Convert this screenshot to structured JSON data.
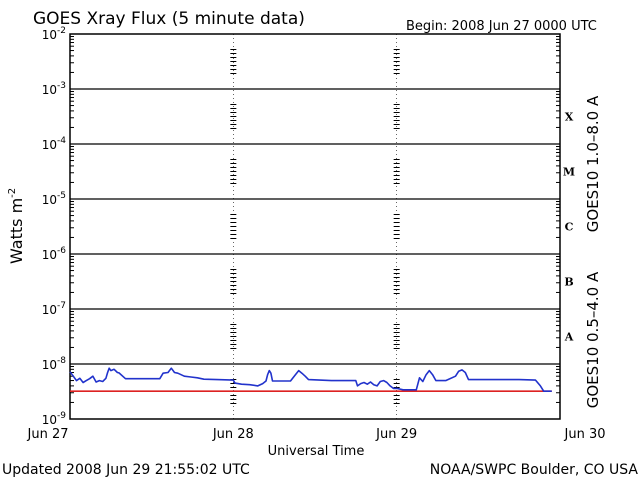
{
  "chart_data": {
    "type": "line",
    "title": "GOES Xray Flux (5 minute data)",
    "begin_label": "Begin:  2008 Jun 27 0000 UTC",
    "xlabel": "Universal Time",
    "ylabel": "Watts m",
    "ylabel_exponent": "-2",
    "y_scale": "log",
    "ylim": [
      1e-09,
      0.01
    ],
    "xlim": [
      0,
      3
    ],
    "x_unit": "days from Jun 27 0000 UTC",
    "x_ticks": [
      {
        "value": 0,
        "label": "Jun 27"
      },
      {
        "value": 1,
        "label": "Jun 28"
      },
      {
        "value": 2,
        "label": "Jun 29"
      },
      {
        "value": 3,
        "label": "Jun 30"
      }
    ],
    "y_ticks": [
      {
        "exp": -9,
        "label_base": "10",
        "label_exp": "-9"
      },
      {
        "exp": -8,
        "label_base": "10",
        "label_exp": "-8"
      },
      {
        "exp": -7,
        "label_base": "10",
        "label_exp": "-7"
      },
      {
        "exp": -6,
        "label_base": "10",
        "label_exp": "-6"
      },
      {
        "exp": -5,
        "label_base": "10",
        "label_exp": "-5"
      },
      {
        "exp": -4,
        "label_base": "10",
        "label_exp": "-4"
      },
      {
        "exp": -3,
        "label_base": "10",
        "label_exp": "-3"
      },
      {
        "exp": -2,
        "label_base": "10",
        "label_exp": "-2"
      }
    ],
    "flare_classes": [
      {
        "label": "A",
        "exp_center": -7.5
      },
      {
        "label": "B",
        "exp_center": -6.5
      },
      {
        "label": "C",
        "exp_center": -5.5
      },
      {
        "label": "M",
        "exp_center": -4.5
      },
      {
        "label": "X",
        "exp_center": -3.5
      }
    ],
    "grid": "horizontal lines at each decade from 1e-8 to 1e-3; dotted verticals at day boundaries",
    "series": [
      {
        "name": "GOES10 1.0–8.0 A",
        "color": "#dd2222",
        "points": [
          [
            0.0,
            3.2e-09
          ],
          [
            2.06,
            3.2e-09
          ],
          [
            2.07,
            3.2e-09
          ],
          [
            2.85,
            3.2e-09
          ],
          [
            2.95,
            3.2e-09
          ]
        ]
      },
      {
        "name": "GOES10 0.5–4.0 A",
        "color": "#2233cc",
        "points": [
          [
            0.0,
            7.2e-09
          ],
          [
            0.02,
            6e-09
          ],
          [
            0.04,
            5e-09
          ],
          [
            0.06,
            5.5e-09
          ],
          [
            0.08,
            4.6e-09
          ],
          [
            0.1,
            5e-09
          ],
          [
            0.12,
            5.4e-09
          ],
          [
            0.14,
            6e-09
          ],
          [
            0.16,
            4.7e-09
          ],
          [
            0.18,
            5e-09
          ],
          [
            0.2,
            4.8e-09
          ],
          [
            0.22,
            5.5e-09
          ],
          [
            0.23,
            7e-09
          ],
          [
            0.24,
            8.4e-09
          ],
          [
            0.25,
            7.6e-09
          ],
          [
            0.27,
            8e-09
          ],
          [
            0.29,
            7e-09
          ],
          [
            0.3,
            6.9e-09
          ],
          [
            0.34,
            5.4e-09
          ],
          [
            0.4,
            5.4e-09
          ],
          [
            0.55,
            5.4e-09
          ],
          [
            0.57,
            6.8e-09
          ],
          [
            0.6,
            7e-09
          ],
          [
            0.62,
            8.4e-09
          ],
          [
            0.64,
            7e-09
          ],
          [
            0.66,
            6.8e-09
          ],
          [
            0.68,
            6.4e-09
          ],
          [
            0.7,
            6e-09
          ],
          [
            0.74,
            5.8e-09
          ],
          [
            0.78,
            5.6e-09
          ],
          [
            0.82,
            5.3e-09
          ],
          [
            0.9,
            5.2e-09
          ],
          [
            1.0,
            5.1e-09
          ],
          [
            1.01,
            4.5e-09
          ],
          [
            1.05,
            4.3e-09
          ],
          [
            1.1,
            4.2e-09
          ],
          [
            1.15,
            4e-09
          ],
          [
            1.18,
            4.4e-09
          ],
          [
            1.2,
            4.9e-09
          ],
          [
            1.21,
            6.4e-09
          ],
          [
            1.22,
            7.6e-09
          ],
          [
            1.23,
            6.8e-09
          ],
          [
            1.24,
            4.9e-09
          ],
          [
            1.28,
            4.9e-09
          ],
          [
            1.35,
            4.9e-09
          ],
          [
            1.38,
            6.4e-09
          ],
          [
            1.4,
            7.6e-09
          ],
          [
            1.42,
            6.8e-09
          ],
          [
            1.44,
            6e-09
          ],
          [
            1.46,
            5.2e-09
          ],
          [
            1.6,
            5e-09
          ],
          [
            1.75,
            5e-09
          ],
          [
            1.76,
            4e-09
          ],
          [
            1.78,
            4.4e-09
          ],
          [
            1.8,
            4.6e-09
          ],
          [
            1.82,
            4.3e-09
          ],
          [
            1.84,
            4.7e-09
          ],
          [
            1.86,
            4.2e-09
          ],
          [
            1.88,
            4e-09
          ],
          [
            1.9,
            4.8e-09
          ],
          [
            1.92,
            5e-09
          ],
          [
            1.94,
            4.6e-09
          ],
          [
            1.96,
            4e-09
          ],
          [
            1.98,
            3.6e-09
          ],
          [
            2.0,
            3.6e-09
          ],
          [
            2.04,
            3.4e-09
          ],
          [
            2.12,
            3.4e-09
          ],
          [
            2.14,
            5.6e-09
          ],
          [
            2.16,
            4.8e-09
          ],
          [
            2.18,
            6.4e-09
          ],
          [
            2.2,
            7.6e-09
          ],
          [
            2.22,
            6.4e-09
          ],
          [
            2.24,
            5e-09
          ],
          [
            2.3,
            5e-09
          ],
          [
            2.36,
            6e-09
          ],
          [
            2.38,
            7.4e-09
          ],
          [
            2.4,
            7.8e-09
          ],
          [
            2.42,
            7e-09
          ],
          [
            2.44,
            5.2e-09
          ],
          [
            2.6,
            5.2e-09
          ],
          [
            2.75,
            5.2e-09
          ],
          [
            2.85,
            5.1e-09
          ],
          [
            2.88,
            4e-09
          ],
          [
            2.9,
            3.2e-09
          ],
          [
            2.95,
            3.2e-09
          ]
        ]
      }
    ]
  },
  "legend": {
    "long_label": "GOES10 1.0–8.0 A",
    "long_color": "#dd2222",
    "short_label": "GOES10 0.5–4.0 A",
    "short_color": "#2233cc"
  },
  "footer": {
    "updated": "Updated 2008 Jun 29 21:55:02 UTC",
    "credit": "NOAA/SWPC Boulder, CO USA"
  }
}
